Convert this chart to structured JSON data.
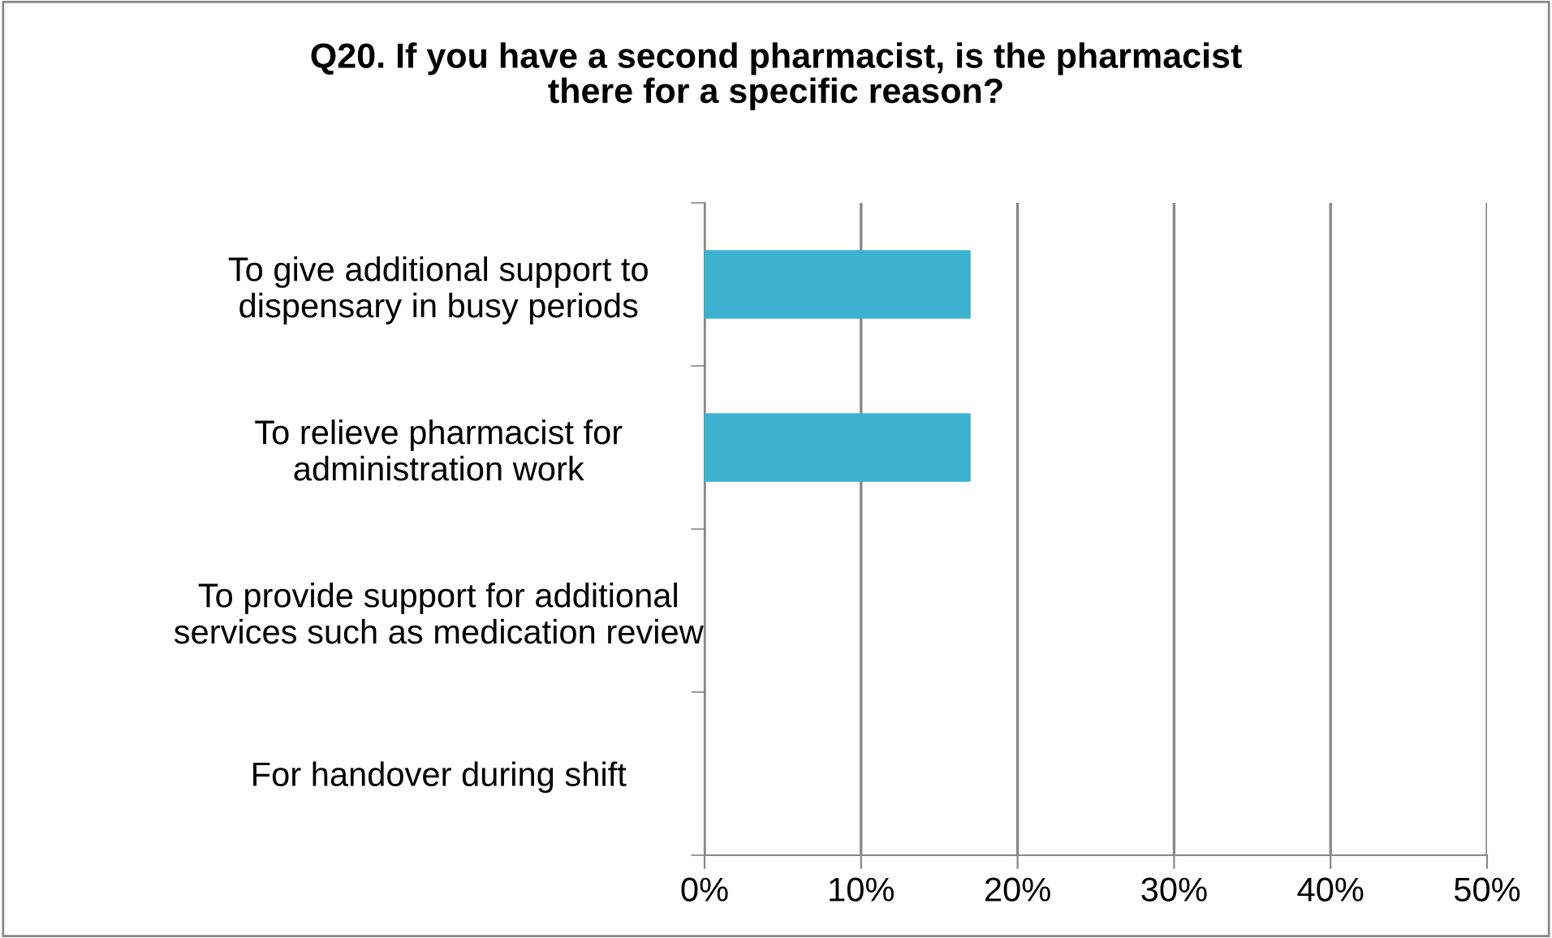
{
  "chart_data": {
    "type": "bar",
    "orientation": "horizontal",
    "title": "Q20. If you have a second pharmacist, is the pharmacist\nthere for a specific reason?",
    "categories": [
      "To give additional support to\ndispensary in busy periods",
      "To relieve pharmacist for\nadministration work",
      "To provide support for additional\nservices such as medication review",
      "For handover during shift"
    ],
    "values": [
      17,
      17,
      0,
      0
    ],
    "color": "#3bb3d0",
    "xlim": [
      0,
      50
    ],
    "xticks": [
      {
        "value": 0,
        "label": "0%"
      },
      {
        "value": 10,
        "label": "10%"
      },
      {
        "value": 20,
        "label": "20%"
      },
      {
        "value": 30,
        "label": "30%"
      },
      {
        "value": 40,
        "label": "40%"
      },
      {
        "value": 50,
        "label": "50%"
      }
    ],
    "grid": "x",
    "legend": false
  }
}
